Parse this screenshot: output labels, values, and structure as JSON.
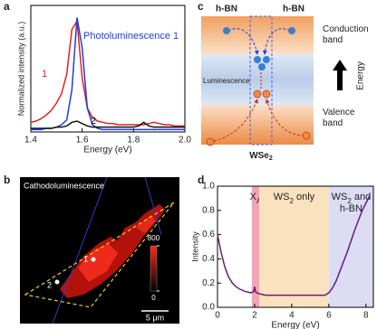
{
  "panel_labels": [
    "a",
    "b",
    "c",
    "d"
  ],
  "chart_data": [
    {
      "type": "line",
      "x_label": "Energy (eV)",
      "y_label": "Normalized intensity (a.u.)",
      "x": [
        1.4,
        1.42,
        1.44,
        1.46,
        1.48,
        1.5,
        1.52,
        1.54,
        1.56,
        1.58,
        1.6,
        1.62,
        1.64,
        1.66,
        1.68,
        1.7,
        1.72,
        1.74,
        1.76,
        1.78,
        1.8,
        1.82,
        1.84,
        1.86,
        1.88,
        1.9,
        1.92,
        1.94,
        1.96,
        1.98,
        2.0
      ],
      "xlim": [
        1.4,
        2.0
      ],
      "xticks": [
        1.4,
        1.6,
        1.8,
        {
          "value": 2,
          "label": "2.0"
        }
      ],
      "ylim": [
        0,
        1.05
      ],
      "series": [
        {
          "name": "1",
          "color": "#e3231c",
          "values": [
            0.08,
            0.09,
            0.11,
            0.14,
            0.18,
            0.24,
            0.32,
            0.48,
            0.85,
            0.92,
            0.45,
            0.2,
            0.12,
            0.09,
            0.08,
            0.07,
            0.07,
            0.06,
            0.06,
            0.06,
            0.06,
            0.06,
            0.06,
            0.07,
            0.08,
            0.07,
            0.06,
            0.06,
            0.05,
            0.05,
            0.05
          ]
        },
        {
          "name": "Photoluminescence 1",
          "color": "#1c3fe3",
          "values": [
            0.02,
            0.02,
            0.02,
            0.03,
            0.03,
            0.04,
            0.06,
            0.1,
            0.35,
            0.95,
            0.7,
            0.2,
            0.06,
            0.03,
            0.02,
            0.02,
            0.02,
            0.02,
            0.02,
            0.02,
            0.02,
            0.02,
            0.02,
            0.02,
            0.02,
            0.02,
            0.02,
            0.02,
            0.02,
            0.02,
            0.02
          ]
        },
        {
          "name": "2",
          "color": "#111111",
          "values": [
            0.03,
            0.03,
            0.03,
            0.03,
            0.03,
            0.04,
            0.04,
            0.05,
            0.08,
            0.09,
            0.07,
            0.05,
            0.04,
            0.04,
            0.04,
            0.04,
            0.04,
            0.04,
            0.04,
            0.04,
            0.04,
            0.05,
            0.08,
            0.05,
            0.04,
            0.04,
            0.04,
            0.04,
            0.04,
            0.04,
            0.04
          ]
        }
      ]
    },
    {
      "type": "line",
      "x_label": "Energy (eV)",
      "y_label": "Intensity",
      "x": [
        0,
        0.2,
        0.4,
        0.6,
        0.8,
        1.0,
        1.2,
        1.5,
        1.8,
        1.95,
        2.0,
        2.05,
        2.1,
        2.3,
        2.6,
        3,
        3.5,
        4,
        4.5,
        5,
        5.5,
        5.8,
        6,
        6.2,
        6.4,
        6.6,
        6.8,
        7,
        7.2,
        7.4,
        7.6,
        7.8,
        8,
        8.2
      ],
      "xlim": [
        0,
        8.4
      ],
      "xticks": [
        0,
        2,
        4,
        6,
        8
      ],
      "ylim": [
        0,
        1
      ],
      "yticks": [
        {
          "value": 0,
          "label": "0.0"
        },
        0.2,
        0.4,
        0.6,
        0.8,
        {
          "value": 1,
          "label": "1.0"
        }
      ],
      "regions": [
        {
          "x0": 1.85,
          "x1": 2.25,
          "color": "#f3a3b5",
          "label": [
            "X",
            "A"
          ]
        },
        {
          "x0": 2.25,
          "x1": 6,
          "color": "#fbe2bf",
          "label": [
            "WS",
            "2",
            " only"
          ]
        },
        {
          "x0": 6,
          "x1": 8.4,
          "color": "#dcdcf5",
          "label": [
            "WS",
            "2",
            " and",
            "h-BN"
          ]
        }
      ],
      "series": [
        {
          "color": "#6b1b7d",
          "values": [
            0.6,
            0.45,
            0.33,
            0.25,
            0.2,
            0.17,
            0.15,
            0.13,
            0.12,
            0.13,
            0.17,
            0.13,
            0.12,
            0.11,
            0.1,
            0.1,
            0.1,
            0.1,
            0.1,
            0.1,
            0.1,
            0.1,
            0.12,
            0.16,
            0.22,
            0.3,
            0.38,
            0.46,
            0.55,
            0.64,
            0.72,
            0.8,
            0.86,
            0.92
          ]
        }
      ]
    }
  ],
  "image_panel": {
    "title": "Cathodoluminescence",
    "colorbar_lim": [
      0,
      800
    ],
    "colorbar_ticks": [
      0,
      800
    ],
    "scale_bar": "5 μm",
    "points": [
      "1",
      "2"
    ]
  },
  "diagram": {
    "hbn_left": "h-BN",
    "hbn_right": "h-BN",
    "conduction": [
      "Conduction",
      "band"
    ],
    "valence": [
      "Valence",
      "band"
    ],
    "luminescence": "Luminescence",
    "energy": "Energy",
    "material": [
      "WSe",
      "2"
    ]
  }
}
